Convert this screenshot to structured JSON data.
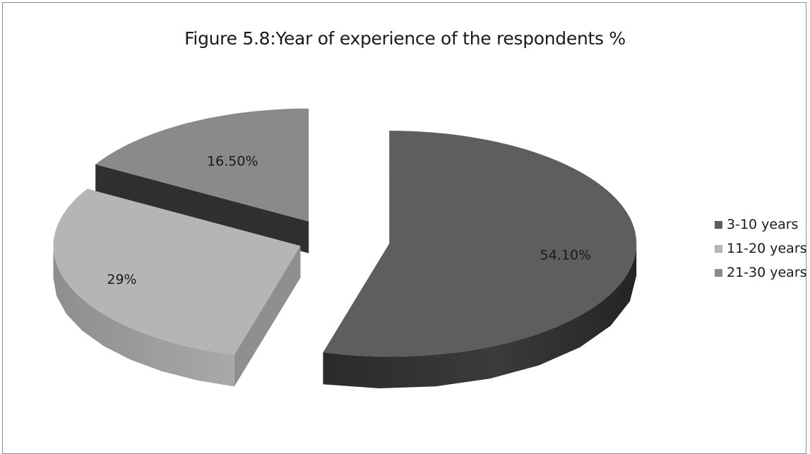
{
  "chart_data": {
    "type": "pie",
    "title": "Figure 5.8:Year of experience of the respondents %",
    "categories": [
      "3-10 years",
      "11-20 years",
      "21-30 years"
    ],
    "values": [
      54.1,
      29,
      16.5
    ],
    "data_labels": [
      "54.10%",
      "29%",
      "16.50%"
    ],
    "colors": [
      "#5e5e5e",
      "#b5b5b5",
      "#8a8a8a"
    ],
    "legend_position": "right",
    "exploded": true,
    "three_d": true
  }
}
